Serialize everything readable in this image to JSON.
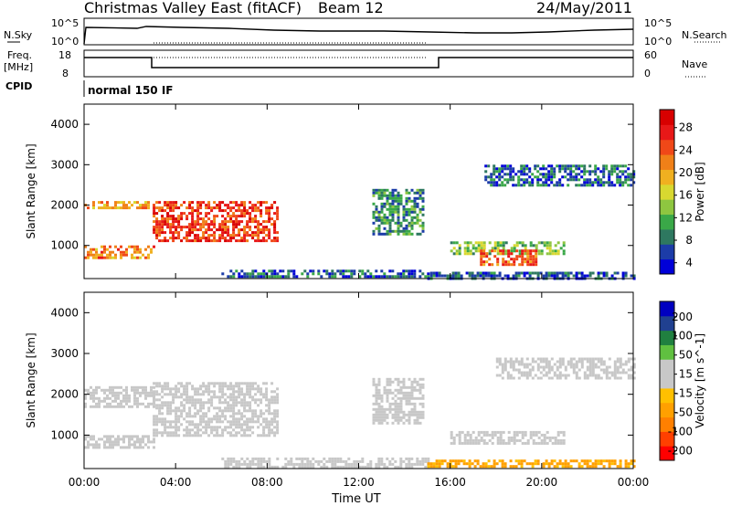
{
  "header": {
    "station": "Christmas Valley East (fitACF)",
    "beam": "Beam 12",
    "date": "24/May/2011"
  },
  "status_panels": {
    "nsky_label": "N.Sky",
    "nsky_ticks": [
      "10^5",
      "10^0"
    ],
    "nsearch_label": "N.Search",
    "nsearch_ticks": [
      "10^5",
      "10^0"
    ],
    "freq_label": [
      "Freq.",
      "[MHz]"
    ],
    "freq_ticks": [
      "18",
      "8"
    ],
    "nave_label": "Nave",
    "nave_ticks": [
      "60",
      "0"
    ],
    "cpid_label": "CPID",
    "cpid_text": "normal 150 IF"
  },
  "colorbars": {
    "power": {
      "label": "Power [dB]",
      "ticks": [
        "28",
        "24",
        "20",
        "16",
        "12",
        "8",
        "4"
      ],
      "colors": [
        "#0000d8",
        "#1c3ca8",
        "#2e7860",
        "#3aa848",
        "#8ec640",
        "#d8d830",
        "#f0b020",
        "#f08018",
        "#f04818",
        "#e81818",
        "#d80000"
      ]
    },
    "velocity": {
      "label": "Velocity [m s^-1]",
      "ticks": [
        "200",
        "100",
        "50",
        "15",
        "-15",
        "-50",
        "-100",
        "-200"
      ],
      "colors": [
        "#ff0000",
        "#ff4000",
        "#ff8000",
        "#ffa000",
        "#ffc000",
        "#c8c8c8",
        "#c8c8c8",
        "#60c040",
        "#208040",
        "#204090",
        "#0000c0"
      ]
    }
  },
  "chart_data": [
    {
      "type": "heatmap",
      "name": "power",
      "ylabel": "Slant Range [km]",
      "xlabel": "Time UT",
      "x_ticks": [
        "00:00",
        "04:00",
        "08:00",
        "12:00",
        "16:00",
        "20:00",
        "00:00"
      ],
      "y_ticks": [
        1000,
        2000,
        3000,
        4000
      ],
      "ylim": [
        180,
        4500
      ],
      "xlim_hours": [
        0,
        24
      ],
      "colorbar_range": [
        0,
        32
      ],
      "features": [
        {
          "t0": 0.0,
          "t1": 3.0,
          "r0": 1900,
          "r1": 2100,
          "value": 20
        },
        {
          "t0": 0.0,
          "t1": 3.0,
          "r0": 700,
          "r1": 1000,
          "value": 22
        },
        {
          "t0": 3.0,
          "t1": 8.5,
          "r0": 1100,
          "r1": 2100,
          "value": 26
        },
        {
          "t0": 6.0,
          "t1": 15.0,
          "r0": 200,
          "r1": 400,
          "value": 6
        },
        {
          "t0": 12.6,
          "t1": 14.8,
          "r0": 1300,
          "r1": 2400,
          "value": 8
        },
        {
          "t0": 16.0,
          "t1": 21.0,
          "r0": 800,
          "r1": 1100,
          "value": 12
        },
        {
          "t0": 17.3,
          "t1": 19.8,
          "r0": 500,
          "r1": 900,
          "value": 24
        },
        {
          "t0": 17.5,
          "t1": 24.0,
          "r0": 2500,
          "r1": 3000,
          "value": 6
        },
        {
          "t0": 15.0,
          "t1": 24.0,
          "r0": 200,
          "r1": 350,
          "value": 5
        }
      ]
    },
    {
      "type": "heatmap",
      "name": "velocity",
      "ylabel": "Slant Range [km]",
      "xlabel": "Time UT",
      "x_ticks": [
        "00:00",
        "04:00",
        "08:00",
        "12:00",
        "16:00",
        "20:00",
        "00:00"
      ],
      "y_ticks": [
        1000,
        2000,
        3000,
        4000
      ],
      "ylim": [
        180,
        4500
      ],
      "xlim_hours": [
        0,
        24
      ],
      "colorbar_range": [
        -200,
        200
      ],
      "features": [
        {
          "t0": 0.0,
          "t1": 3.0,
          "r0": 1700,
          "r1": 2200,
          "value": 0
        },
        {
          "t0": 0.0,
          "t1": 3.0,
          "r0": 700,
          "r1": 1000,
          "value": 0
        },
        {
          "t0": 3.0,
          "t1": 8.5,
          "r0": 1000,
          "r1": 2300,
          "value": 0
        },
        {
          "t0": 6.0,
          "t1": 15.0,
          "r0": 200,
          "r1": 450,
          "value": 40
        },
        {
          "t0": 12.6,
          "t1": 14.8,
          "r0": 1300,
          "r1": 2400,
          "value": 0
        },
        {
          "t0": 16.0,
          "t1": 21.0,
          "r0": 800,
          "r1": 1100,
          "value": 0
        },
        {
          "t0": 18.0,
          "t1": 24.0,
          "r0": 2400,
          "r1": 2900,
          "value": 0
        },
        {
          "t0": 15.0,
          "t1": 24.0,
          "r0": 200,
          "r1": 400,
          "value": -60
        }
      ]
    }
  ]
}
